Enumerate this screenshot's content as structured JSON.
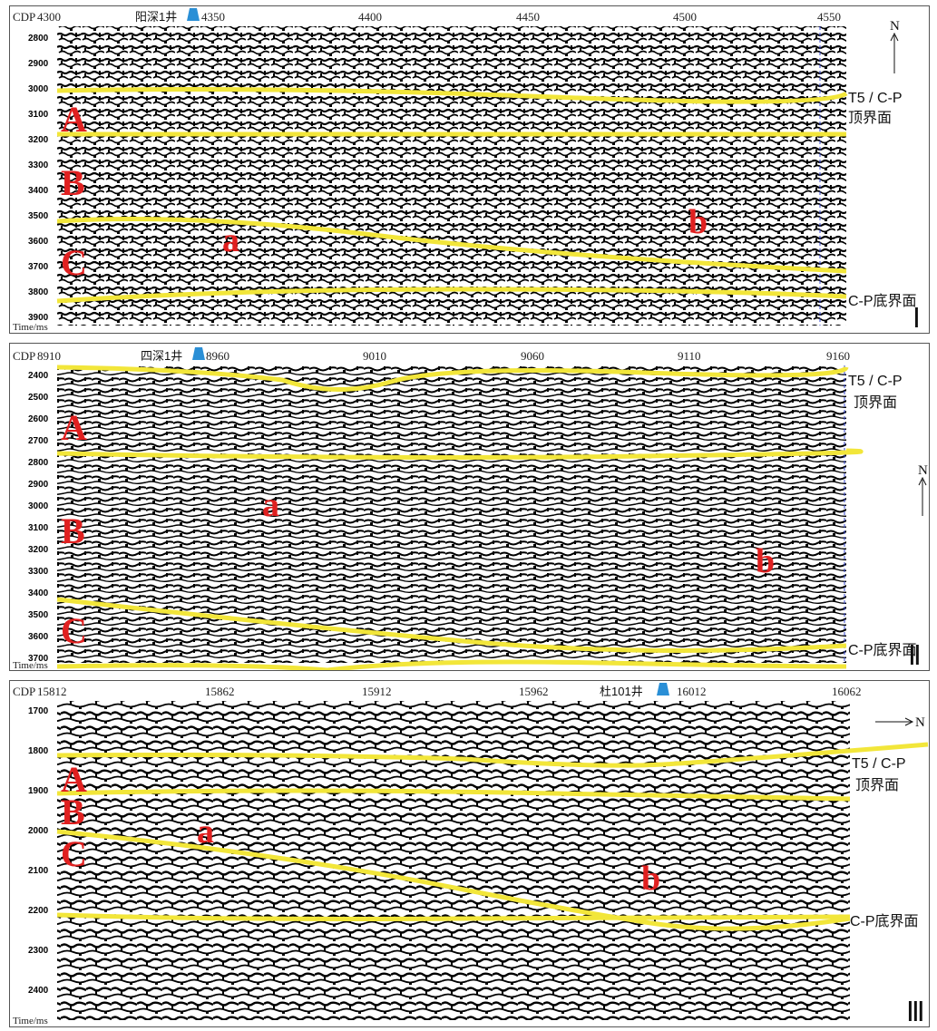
{
  "panels": [
    {
      "id": "panel-1",
      "cdp_label": "CDP",
      "cdp_ticks": [
        "4300",
        "4350",
        "4400",
        "4450",
        "4500",
        "4550"
      ],
      "time_ticks": [
        "2800",
        "2900",
        "3000",
        "3100",
        "3200",
        "3300",
        "3400",
        "3500",
        "3600",
        "3700",
        "3800",
        "3900"
      ],
      "time_axis_label": "Time/ms",
      "well_label": "阳深1井",
      "units": [
        "A",
        "B",
        "C"
      ],
      "markers": [
        "a",
        "b"
      ],
      "top_horizon_label": [
        "T5 / C-P",
        "顶界面"
      ],
      "bottom_horizon_label": "C-P底界面",
      "north_label": "N",
      "panel_number": "Ⅰ"
    },
    {
      "id": "panel-2",
      "cdp_label": "CDP",
      "cdp_ticks": [
        "8910",
        "8960",
        "9010",
        "9060",
        "9110",
        "9160"
      ],
      "time_ticks": [
        "2400",
        "2500",
        "2600",
        "2700",
        "2800",
        "2900",
        "3000",
        "3100",
        "3200",
        "3300",
        "3400",
        "3500",
        "3600",
        "3700"
      ],
      "time_axis_label": "Time/ms",
      "well_label": "四深1井",
      "units": [
        "A",
        "B",
        "C"
      ],
      "markers": [
        "a",
        "b"
      ],
      "top_horizon_label": [
        "T5 / C-P",
        "顶界面"
      ],
      "bottom_horizon_label": "C-P底界面",
      "north_label": "N",
      "panel_number": "Ⅱ"
    },
    {
      "id": "panel-3",
      "cdp_label": "CDP",
      "cdp_ticks": [
        "15812",
        "15862",
        "15912",
        "15962",
        "16012",
        "16062"
      ],
      "time_ticks": [
        "1700",
        "1800",
        "1900",
        "2000",
        "2100",
        "2200",
        "2300",
        "2400"
      ],
      "time_axis_label": "Time/ms",
      "well_label": "杜101井",
      "units": [
        "A",
        "B",
        "C"
      ],
      "markers": [
        "a",
        "b"
      ],
      "top_horizon_label": [
        "T5 / C-P",
        "顶界面"
      ],
      "bottom_horizon_label": "C-P底界面",
      "north_label": "N",
      "panel_number": "Ⅲ"
    }
  ],
  "colors": {
    "horizon": "#f2e63a",
    "horizon_dark": "#8a8540",
    "unit_letters": "#e02020",
    "well_marker": "#2a8fd6",
    "boundary_line": "#3344cc"
  }
}
